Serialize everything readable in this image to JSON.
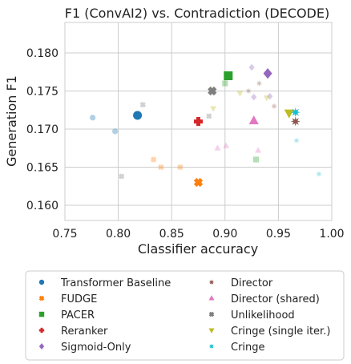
{
  "chart_data": {
    "type": "scatter",
    "title": "F1 (ConvAI2) vs. Contradiction (DECODE)",
    "xlabel": "Classifier accuracy",
    "ylabel": "Generation F1",
    "xlim": [
      0.75,
      1.0
    ],
    "ylim": [
      0.158,
      0.184
    ],
    "xticks": [
      "0.75",
      "0.80",
      "0.85",
      "0.90",
      "0.95",
      "1.00"
    ],
    "yticks": [
      "0.160",
      "0.165",
      "0.170",
      "0.175",
      "0.180"
    ],
    "grid": true,
    "legend_position": "bottom",
    "series": [
      {
        "name": "Transformer Baseline",
        "color": "#1f77b4",
        "marker": "circle",
        "points": [
          [
            0.818,
            0.1718,
            true
          ],
          [
            0.797,
            0.1697,
            false
          ],
          [
            0.776,
            0.1715,
            false
          ]
        ]
      },
      {
        "name": "FUDGE",
        "color": "#ff7f0e",
        "marker": "x",
        "points": [
          [
            0.875,
            0.163,
            true
          ],
          [
            0.833,
            0.166,
            false
          ],
          [
            0.84,
            0.165,
            false
          ],
          [
            0.858,
            0.165,
            false
          ]
        ]
      },
      {
        "name": "PACER",
        "color": "#2ca02c",
        "marker": "square",
        "points": [
          [
            0.903,
            0.177,
            true
          ],
          [
            0.9,
            0.176,
            false
          ],
          [
            0.929,
            0.166,
            false
          ]
        ]
      },
      {
        "name": "Reranker",
        "color": "#d62728",
        "marker": "plus",
        "points": [
          [
            0.875,
            0.171,
            true
          ]
        ]
      },
      {
        "name": "Sigmoid-Only",
        "color": "#9467bd",
        "marker": "diamond",
        "points": [
          [
            0.94,
            0.1773,
            true
          ],
          [
            0.925,
            0.1781,
            false
          ],
          [
            0.927,
            0.1742,
            false
          ],
          [
            0.942,
            0.1743,
            false
          ]
        ]
      },
      {
        "name": "Director",
        "color": "#8c564b",
        "marker": "star4",
        "points": [
          [
            0.966,
            0.171,
            true
          ],
          [
            0.932,
            0.176,
            false
          ],
          [
            0.946,
            0.173,
            false
          ],
          [
            0.922,
            0.175,
            false
          ]
        ]
      },
      {
        "name": "Director (shared)",
        "color": "#e377c2",
        "marker": "triangle",
        "points": [
          [
            0.927,
            0.1711,
            true
          ],
          [
            0.893,
            0.1675,
            false
          ],
          [
            0.901,
            0.1678,
            false
          ],
          [
            0.931,
            0.1672,
            false
          ]
        ]
      },
      {
        "name": "Unlikelihood",
        "color": "#7f7f7f",
        "marker": "x",
        "points": [
          [
            0.888,
            0.175,
            true
          ],
          [
            0.823,
            0.1732,
            false
          ],
          [
            0.803,
            0.1638,
            false
          ],
          [
            0.885,
            0.1717,
            false
          ]
        ]
      },
      {
        "name": "Cringe (single iter.)",
        "color": "#bcbd22",
        "marker": "triangle-down",
        "points": [
          [
            0.96,
            0.1721,
            true
          ],
          [
            0.889,
            0.1727,
            false
          ],
          [
            0.914,
            0.1747,
            false
          ],
          [
            0.939,
            0.1741,
            false
          ]
        ]
      },
      {
        "name": "Cringe",
        "color": "#17becf",
        "marker": "star4",
        "points": [
          [
            0.966,
            0.1722,
            true
          ],
          [
            0.967,
            0.1685,
            false
          ],
          [
            0.988,
            0.1641,
            false
          ]
        ]
      }
    ]
  }
}
